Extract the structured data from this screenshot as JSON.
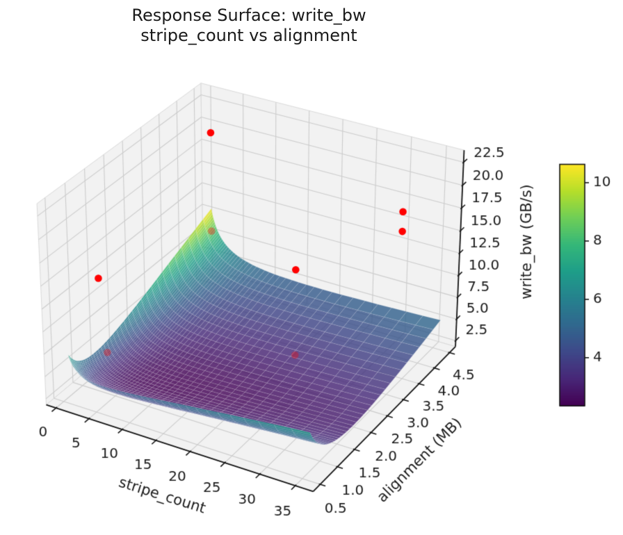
{
  "chart_data": {
    "type": "surface3d",
    "title": "Response Surface: write_bw\nstripe_count vs alignment",
    "view": {
      "elev": 30,
      "azim": -60,
      "dist": 10,
      "box_aspect": [
        1.143,
        1.143,
        0.858
      ]
    },
    "axes": {
      "x": {
        "label": "stripe_count",
        "lim": [
          -1.5,
          37.5
        ],
        "ticks": [
          0,
          5,
          10,
          15,
          20,
          25,
          30,
          35
        ]
      },
      "y": {
        "label": "alignment (MB)",
        "lim": [
          0.3,
          4.7
        ],
        "ticks": [
          0.5,
          1.0,
          1.5,
          2.0,
          2.5,
          3.0,
          3.5,
          4.0,
          4.5
        ]
      },
      "z": {
        "label": "write_bw (GB/s)",
        "lim": [
          1.8,
          23.8
        ],
        "ticks": [
          2.5,
          5.0,
          7.5,
          10.0,
          12.5,
          15.0,
          17.5,
          20.0,
          22.5
        ]
      }
    },
    "surface": {
      "colormap": "viridis",
      "alpha": 0.82,
      "domain_x": [
        1,
        36
      ],
      "domain_y": [
        0.5,
        4.5
      ],
      "grid": [
        48,
        40
      ],
      "log2_model": {
        "f0": 2.35,
        "a": 0.26,
        "b": 1.1,
        "c": -0.32,
        "e": 0.03,
        "u0": 3.4,
        "v0": 0.6
      }
    },
    "scatter": {
      "color": "#ff0000",
      "points": [
        {
          "stripe_count": 1,
          "alignment": 4.5,
          "write_bw": 19.3,
          "behind_surface": false
        },
        {
          "stripe_count": 30,
          "alignment": 4.5,
          "write_bw": 16.2,
          "behind_surface": false
        },
        {
          "stripe_count": 30,
          "alignment": 4.5,
          "write_bw": 14.0,
          "behind_surface": false
        },
        {
          "stripe_count": 3,
          "alignment": 1.0,
          "write_bw": 14.5,
          "behind_surface": false
        },
        {
          "stripe_count": 24,
          "alignment": 2.5,
          "write_bw": 15.0,
          "behind_surface": false
        },
        {
          "stripe_count": 1,
          "alignment": 4.5,
          "write_bw": 8.0,
          "behind_surface": true
        },
        {
          "stripe_count": 4,
          "alignment": 1.0,
          "write_bw": 6.5,
          "behind_surface": true
        },
        {
          "stripe_count": 24,
          "alignment": 2.5,
          "write_bw": 5.5,
          "behind_surface": true
        }
      ]
    },
    "colorbar": {
      "ticks": [
        4,
        6,
        8,
        10
      ]
    },
    "style": {
      "pane_color": "#f2f2f2",
      "pane_edge_color": "#dadada",
      "grid_color": "#cccccc",
      "spine_color": "#141414",
      "text_color": "#1a1a1a",
      "mesh_line_color": "rgba(255,255,255,0.30)",
      "scatter_dim_alpha": 0.34
    }
  }
}
